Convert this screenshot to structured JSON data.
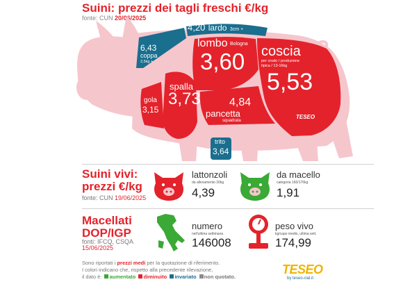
{
  "header": {
    "title": "Suini: prezzi dei tagli freschi €/kg",
    "source_prefix": "fonte: CUN",
    "source_date": "20/06/2025"
  },
  "cuts": {
    "lardo": {
      "value": "4,20",
      "name": "lardo",
      "note": "3cm +",
      "status": "invariato"
    },
    "coppa": {
      "value": "6,43",
      "name": "coppa",
      "note": "2,5kg +",
      "status": "invariato"
    },
    "lombo": {
      "name": "lombo",
      "qualifier": "Bologna",
      "value": "3,60",
      "status": "diminuito"
    },
    "coscia": {
      "name": "coscia",
      "note1": "per crudo / produzione",
      "note2": "tipica / 13-16kg",
      "value": "5,53",
      "status": "diminuito"
    },
    "gola": {
      "name": "gola",
      "value": "3,15",
      "status": "diminuito"
    },
    "spalla": {
      "name": "spalla",
      "value": "3,73",
      "status": "diminuito"
    },
    "pancetta": {
      "value": "4,84",
      "name": "pancetta",
      "note": "squadrata",
      "status": "diminuito"
    },
    "trito": {
      "name": "trito",
      "value": "3,64",
      "status": "invariato"
    },
    "logo": "TESEO"
  },
  "live_pigs": {
    "title_line1": "Suini vivi:",
    "title_line2": "prezzi €/kg",
    "source_prefix": "fonte: CUN",
    "source_date": "19/06/2025",
    "lattonzoli": {
      "label": "lattonzoli",
      "sub": "da allevamento 30kg",
      "value": "4,39",
      "status": "diminuito"
    },
    "macello": {
      "label": "da macello",
      "sub": "categoria 160/176kg",
      "value": "1,91",
      "status": "aumentato"
    }
  },
  "slaughter": {
    "title_line1": "Macellati",
    "title_line2": "DOP/IGP",
    "source_line": "fonti: IFCQ, CSQA",
    "source_date": "15/06/2025",
    "numero": {
      "label": "numero",
      "sub": "nell'ultima settimana",
      "value": "146008"
    },
    "peso": {
      "label": "peso vivo",
      "sub": "kg/capo medio, ultima sett.",
      "value": "174,99"
    }
  },
  "footer": {
    "line1a": "Sono riportati i ",
    "line1b": "prezzi medi",
    "line1c": " per la quotazione di riferimento.",
    "line2": "I colori indicano che, rispetto alla precedente rilevazione,",
    "line3a": "il dato è:",
    "aumentato": "aumentato",
    "diminuito": "diminuito",
    "invariato": "invariato",
    "non_quotato": "non quotato."
  },
  "brand": {
    "logo": "TESEO",
    "sub": "by teseo.clal.it"
  },
  "colors": {
    "aumentato": "#3aa935",
    "diminuito": "#e4222b",
    "invariato": "#1a6e8e",
    "non_quotato": "#8a8a8a",
    "pig_body": "#f6c6cd"
  }
}
